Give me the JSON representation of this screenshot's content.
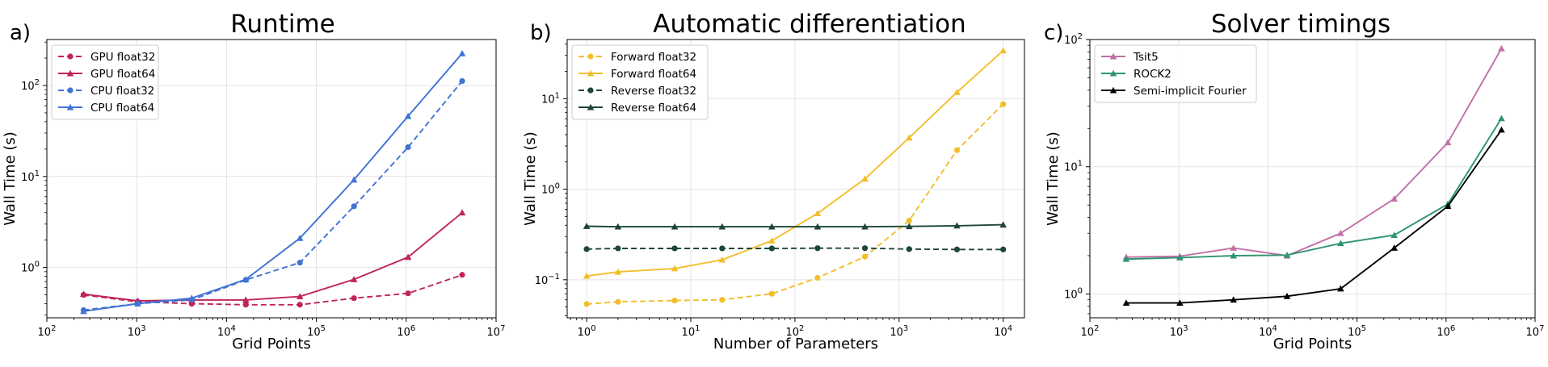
{
  "chart_data": [
    {
      "type": "line",
      "panel_label": "a)",
      "title": "Runtime",
      "xlabel": "Grid Points",
      "ylabel": "Wall Time (s)",
      "xscale": "log",
      "yscale": "log",
      "xlim": [
        100,
        10000000
      ],
      "ylim": [
        0.28,
        320
      ],
      "x_ticks": [
        {
          "v": 100,
          "b": "10",
          "e": "2"
        },
        {
          "v": 1000,
          "b": "10",
          "e": "3"
        },
        {
          "v": 10000,
          "b": "10",
          "e": "4"
        },
        {
          "v": 100000,
          "b": "10",
          "e": "5"
        },
        {
          "v": 1000000,
          "b": "10",
          "e": "6"
        },
        {
          "v": 10000000,
          "b": "10",
          "e": "7"
        }
      ],
      "y_ticks": [
        {
          "v": 1,
          "b": "10",
          "e": "0"
        },
        {
          "v": 10,
          "b": "10",
          "e": "1"
        },
        {
          "v": 100,
          "b": "10",
          "e": "2"
        }
      ],
      "grid": true,
      "legend_position": "top-left",
      "series": [
        {
          "name": "GPU float32",
          "color": "#c0245a",
          "dashed": true,
          "marker": "circle",
          "x": [
            256,
            1024,
            4096,
            16384,
            65536,
            262144,
            1048576,
            4194304
          ],
          "y": [
            0.5,
            0.42,
            0.4,
            0.39,
            0.39,
            0.46,
            0.52,
            0.83
          ]
        },
        {
          "name": "GPU float64",
          "color": "#c0245a",
          "dashed": false,
          "marker": "triangle",
          "x": [
            256,
            1024,
            4096,
            16384,
            65536,
            262144,
            1048576,
            4194304
          ],
          "y": [
            0.51,
            0.43,
            0.44,
            0.44,
            0.48,
            0.74,
            1.3,
            4.0
          ]
        },
        {
          "name": "CPU float32",
          "color": "#3f73d6",
          "dashed": true,
          "marker": "circle",
          "x": [
            256,
            1024,
            4096,
            16384,
            65536,
            262144,
            1048576,
            4194304
          ],
          "y": [
            0.34,
            0.4,
            0.44,
            0.73,
            1.13,
            4.7,
            21,
            112
          ]
        },
        {
          "name": "CPU float64",
          "color": "#3f73d6",
          "dashed": false,
          "marker": "triangle",
          "x": [
            256,
            1024,
            4096,
            16384,
            65536,
            262144,
            1048576,
            4194304
          ],
          "y": [
            0.33,
            0.4,
            0.46,
            0.74,
            2.1,
            9.2,
            46,
            225
          ]
        }
      ]
    },
    {
      "type": "line",
      "panel_label": "b)",
      "title": "Automatic differentiation",
      "xlabel": "Number of Parameters",
      "ylabel": "Wall Time (s)",
      "xscale": "log",
      "yscale": "log",
      "xlim": [
        0.65,
        16000
      ],
      "ylim": [
        0.038,
        45
      ],
      "x_ticks": [
        {
          "v": 1,
          "b": "10",
          "e": "0"
        },
        {
          "v": 10,
          "b": "10",
          "e": "1"
        },
        {
          "v": 100,
          "b": "10",
          "e": "2"
        },
        {
          "v": 1000,
          "b": "10",
          "e": "3"
        },
        {
          "v": 10000,
          "b": "10",
          "e": "4"
        }
      ],
      "y_ticks": [
        {
          "v": 0.1,
          "b": "10",
          "e": "−1"
        },
        {
          "v": 1,
          "b": "10",
          "e": "0"
        },
        {
          "v": 10,
          "b": "10",
          "e": "1"
        }
      ],
      "grid": true,
      "legend_position": "top-left",
      "series": [
        {
          "name": "Forward float32",
          "color": "#f2be2b",
          "dashed": true,
          "marker": "circle",
          "x": [
            1,
            2,
            7,
            20,
            60,
            165,
            470,
            1250,
            3600,
            10000
          ],
          "y": [
            0.054,
            0.057,
            0.059,
            0.06,
            0.07,
            0.105,
            0.18,
            0.45,
            2.7,
            8.7
          ]
        },
        {
          "name": "Forward float64",
          "color": "#f2be2b",
          "dashed": false,
          "marker": "triangle",
          "x": [
            1,
            2,
            7,
            20,
            60,
            165,
            470,
            1250,
            3600,
            10000
          ],
          "y": [
            0.11,
            0.122,
            0.133,
            0.166,
            0.27,
            0.54,
            1.3,
            3.7,
            11.8,
            34
          ]
        },
        {
          "name": "Reverse float32",
          "color": "#1e4634",
          "dashed": true,
          "marker": "circle",
          "x": [
            1,
            2,
            7,
            20,
            60,
            165,
            470,
            1250,
            3600,
            10000
          ],
          "y": [
            0.218,
            0.222,
            0.222,
            0.222,
            0.222,
            0.223,
            0.223,
            0.218,
            0.216,
            0.216
          ]
        },
        {
          "name": "Reverse float64",
          "color": "#1e4634",
          "dashed": false,
          "marker": "triangle",
          "x": [
            1,
            2,
            7,
            20,
            60,
            165,
            470,
            1250,
            3600,
            10000
          ],
          "y": [
            0.39,
            0.385,
            0.385,
            0.385,
            0.385,
            0.385,
            0.385,
            0.388,
            0.395,
            0.405
          ]
        }
      ]
    },
    {
      "type": "line",
      "panel_label": "c)",
      "title": "Solver timings",
      "xlabel": "Grid Points",
      "ylabel": "Wall Time (s)",
      "xscale": "log",
      "yscale": "log",
      "xlim": [
        100,
        10000000
      ],
      "ylim": [
        0.65,
        100
      ],
      "x_ticks": [
        {
          "v": 100,
          "b": "10",
          "e": "2"
        },
        {
          "v": 1000,
          "b": "10",
          "e": "3"
        },
        {
          "v": 10000,
          "b": "10",
          "e": "4"
        },
        {
          "v": 100000,
          "b": "10",
          "e": "5"
        },
        {
          "v": 1000000,
          "b": "10",
          "e": "6"
        },
        {
          "v": 10000000,
          "b": "10",
          "e": "7"
        }
      ],
      "y_ticks": [
        {
          "v": 1,
          "b": "10",
          "e": "0"
        },
        {
          "v": 10,
          "b": "10",
          "e": "1"
        },
        {
          "v": 100,
          "b": "10",
          "e": "2"
        }
      ],
      "grid": true,
      "legend_position": "top-left",
      "series": [
        {
          "name": "Tsit5",
          "color": "#c26fa6",
          "dashed": false,
          "marker": "triangle",
          "x": [
            256,
            1024,
            4096,
            16384,
            65536,
            262144,
            1048576,
            4194304
          ],
          "y": [
            1.95,
            1.98,
            2.3,
            2.0,
            3.0,
            5.6,
            15.5,
            85
          ]
        },
        {
          "name": "ROCK2",
          "color": "#2e9472",
          "dashed": false,
          "marker": "triangle",
          "x": [
            256,
            1024,
            4096,
            16384,
            65536,
            262144,
            1048576,
            4194304
          ],
          "y": [
            1.88,
            1.93,
            2.0,
            2.02,
            2.5,
            2.9,
            5.1,
            24
          ]
        },
        {
          "name": "Semi-implicit Fourier",
          "color": "#000000",
          "dashed": false,
          "marker": "triangle",
          "x": [
            256,
            1024,
            4096,
            16384,
            65536,
            262144,
            1048576,
            4194304
          ],
          "y": [
            0.85,
            0.85,
            0.9,
            0.96,
            1.1,
            2.3,
            4.9,
            19.5
          ]
        }
      ]
    }
  ]
}
